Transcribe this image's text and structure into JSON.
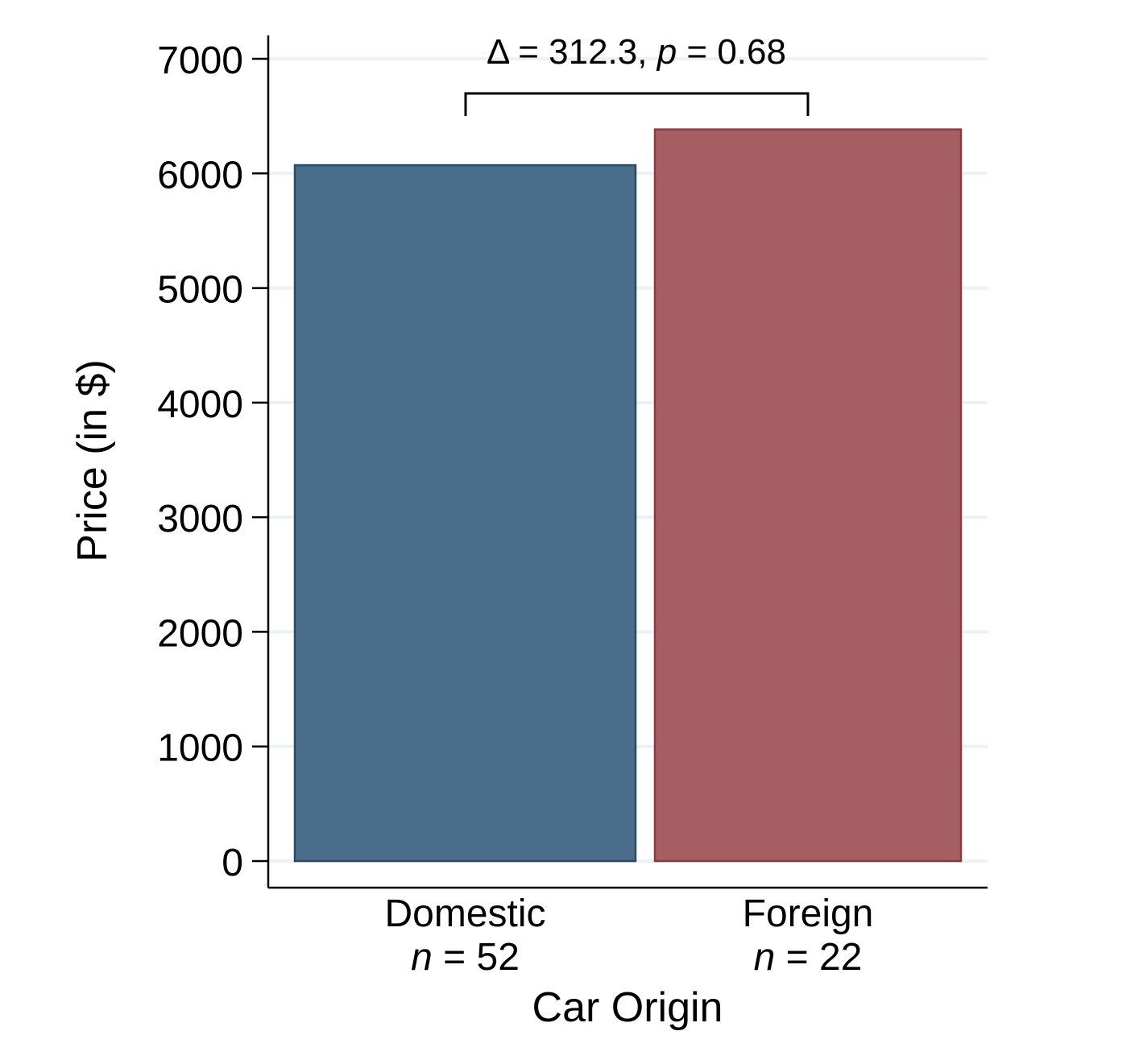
{
  "chart_data": {
    "type": "bar",
    "categories": [
      "Domestic",
      "Foreign"
    ],
    "sample_sizes": [
      "n = 52",
      "n = 22"
    ],
    "sample_size_parts": [
      {
        "symbol": "n",
        "rest": " = 52"
      },
      {
        "symbol": "n",
        "rest": " = 22"
      }
    ],
    "values": [
      6072,
      6384
    ],
    "bar_colors": [
      "#4a6d8c",
      "#a55e62"
    ],
    "bar_edge_colors": [
      "#2b4a66",
      "#8c3a40"
    ],
    "xlabel": "Car Origin",
    "ylabel": "Price (in $)",
    "ylim": [
      0,
      7000
    ],
    "yticks": [
      0,
      1000,
      2000,
      3000,
      4000,
      5000,
      6000,
      7000
    ],
    "grid": true,
    "grid_color": "#eaf2f3",
    "annotation": {
      "text": "Δ = 312.3, p = 0.68",
      "delta_part": "Δ = 312.3, ",
      "p_symbol": "p",
      "p_part": " = 0.68"
    }
  }
}
